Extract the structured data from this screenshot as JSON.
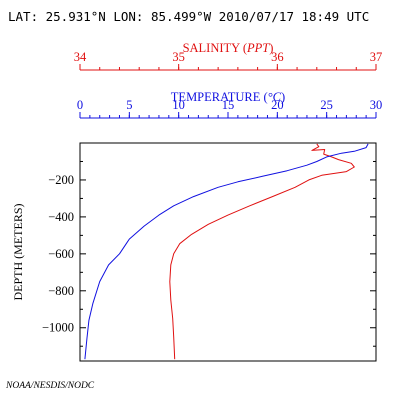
{
  "header": {
    "text": "LAT: 25.931°N LON: 85.499°W 2010/07/17 18:49 UTC"
  },
  "footer": {
    "credit": "NOAA/NESDIS/NODC"
  },
  "colors": {
    "salinity": "#e01010",
    "temperature": "#1010e0",
    "frame": "#000000"
  },
  "chart_data": {
    "type": "line",
    "ylabel": "DEPTH (METERS)",
    "ylim": [
      -1180,
      0
    ],
    "yticks": [
      -200,
      -400,
      -600,
      -800,
      -1000
    ],
    "ytick_labels": [
      "−200",
      "−400",
      "−600",
      "−800",
      "−1000"
    ],
    "salinity_axis": {
      "label_prefix": "SALINITY (",
      "label_unit": "PPT",
      "label_suffix": ")",
      "range": [
        34,
        37
      ],
      "ticks": [
        34,
        35,
        36,
        37
      ]
    },
    "temperature_axis": {
      "label_prefix": "TEMPERATURE (",
      "label_unit": "°C",
      "label_suffix": ")",
      "range": [
        0,
        30
      ],
      "ticks": [
        0,
        5,
        10,
        15,
        20,
        25,
        30
      ]
    },
    "series": [
      {
        "name": "SALINITY",
        "axis": "salinity",
        "points": [
          [
            36.4,
            -5
          ],
          [
            36.42,
            -20
          ],
          [
            36.35,
            -40
          ],
          [
            36.48,
            -35
          ],
          [
            36.47,
            -60
          ],
          [
            36.55,
            -75
          ],
          [
            36.62,
            -90
          ],
          [
            36.75,
            -110
          ],
          [
            36.78,
            -130
          ],
          [
            36.7,
            -155
          ],
          [
            36.45,
            -175
          ],
          [
            36.32,
            -200
          ],
          [
            36.18,
            -240
          ],
          [
            35.95,
            -290
          ],
          [
            35.72,
            -340
          ],
          [
            35.5,
            -390
          ],
          [
            35.3,
            -440
          ],
          [
            35.13,
            -495
          ],
          [
            35.01,
            -545
          ],
          [
            34.95,
            -600
          ],
          [
            34.92,
            -660
          ],
          [
            34.91,
            -750
          ],
          [
            34.92,
            -850
          ],
          [
            34.94,
            -950
          ],
          [
            34.95,
            -1050
          ],
          [
            34.96,
            -1170
          ]
        ]
      },
      {
        "name": "TEMPERATURE",
        "axis": "temperature",
        "points": [
          [
            29.2,
            -5
          ],
          [
            29.0,
            -25
          ],
          [
            27.8,
            -45
          ],
          [
            26.5,
            -55
          ],
          [
            25.0,
            -75
          ],
          [
            24.0,
            -100
          ],
          [
            23.0,
            -120
          ],
          [
            21.0,
            -150
          ],
          [
            18.5,
            -180
          ],
          [
            16.0,
            -210
          ],
          [
            14.0,
            -240
          ],
          [
            11.5,
            -290
          ],
          [
            9.5,
            -340
          ],
          [
            8.0,
            -390
          ],
          [
            6.5,
            -450
          ],
          [
            5.0,
            -520
          ],
          [
            4.0,
            -600
          ],
          [
            2.9,
            -660
          ],
          [
            2.0,
            -750
          ],
          [
            1.3,
            -870
          ],
          [
            0.9,
            -960
          ],
          [
            0.7,
            -1060
          ],
          [
            0.5,
            -1170
          ]
        ]
      }
    ]
  }
}
